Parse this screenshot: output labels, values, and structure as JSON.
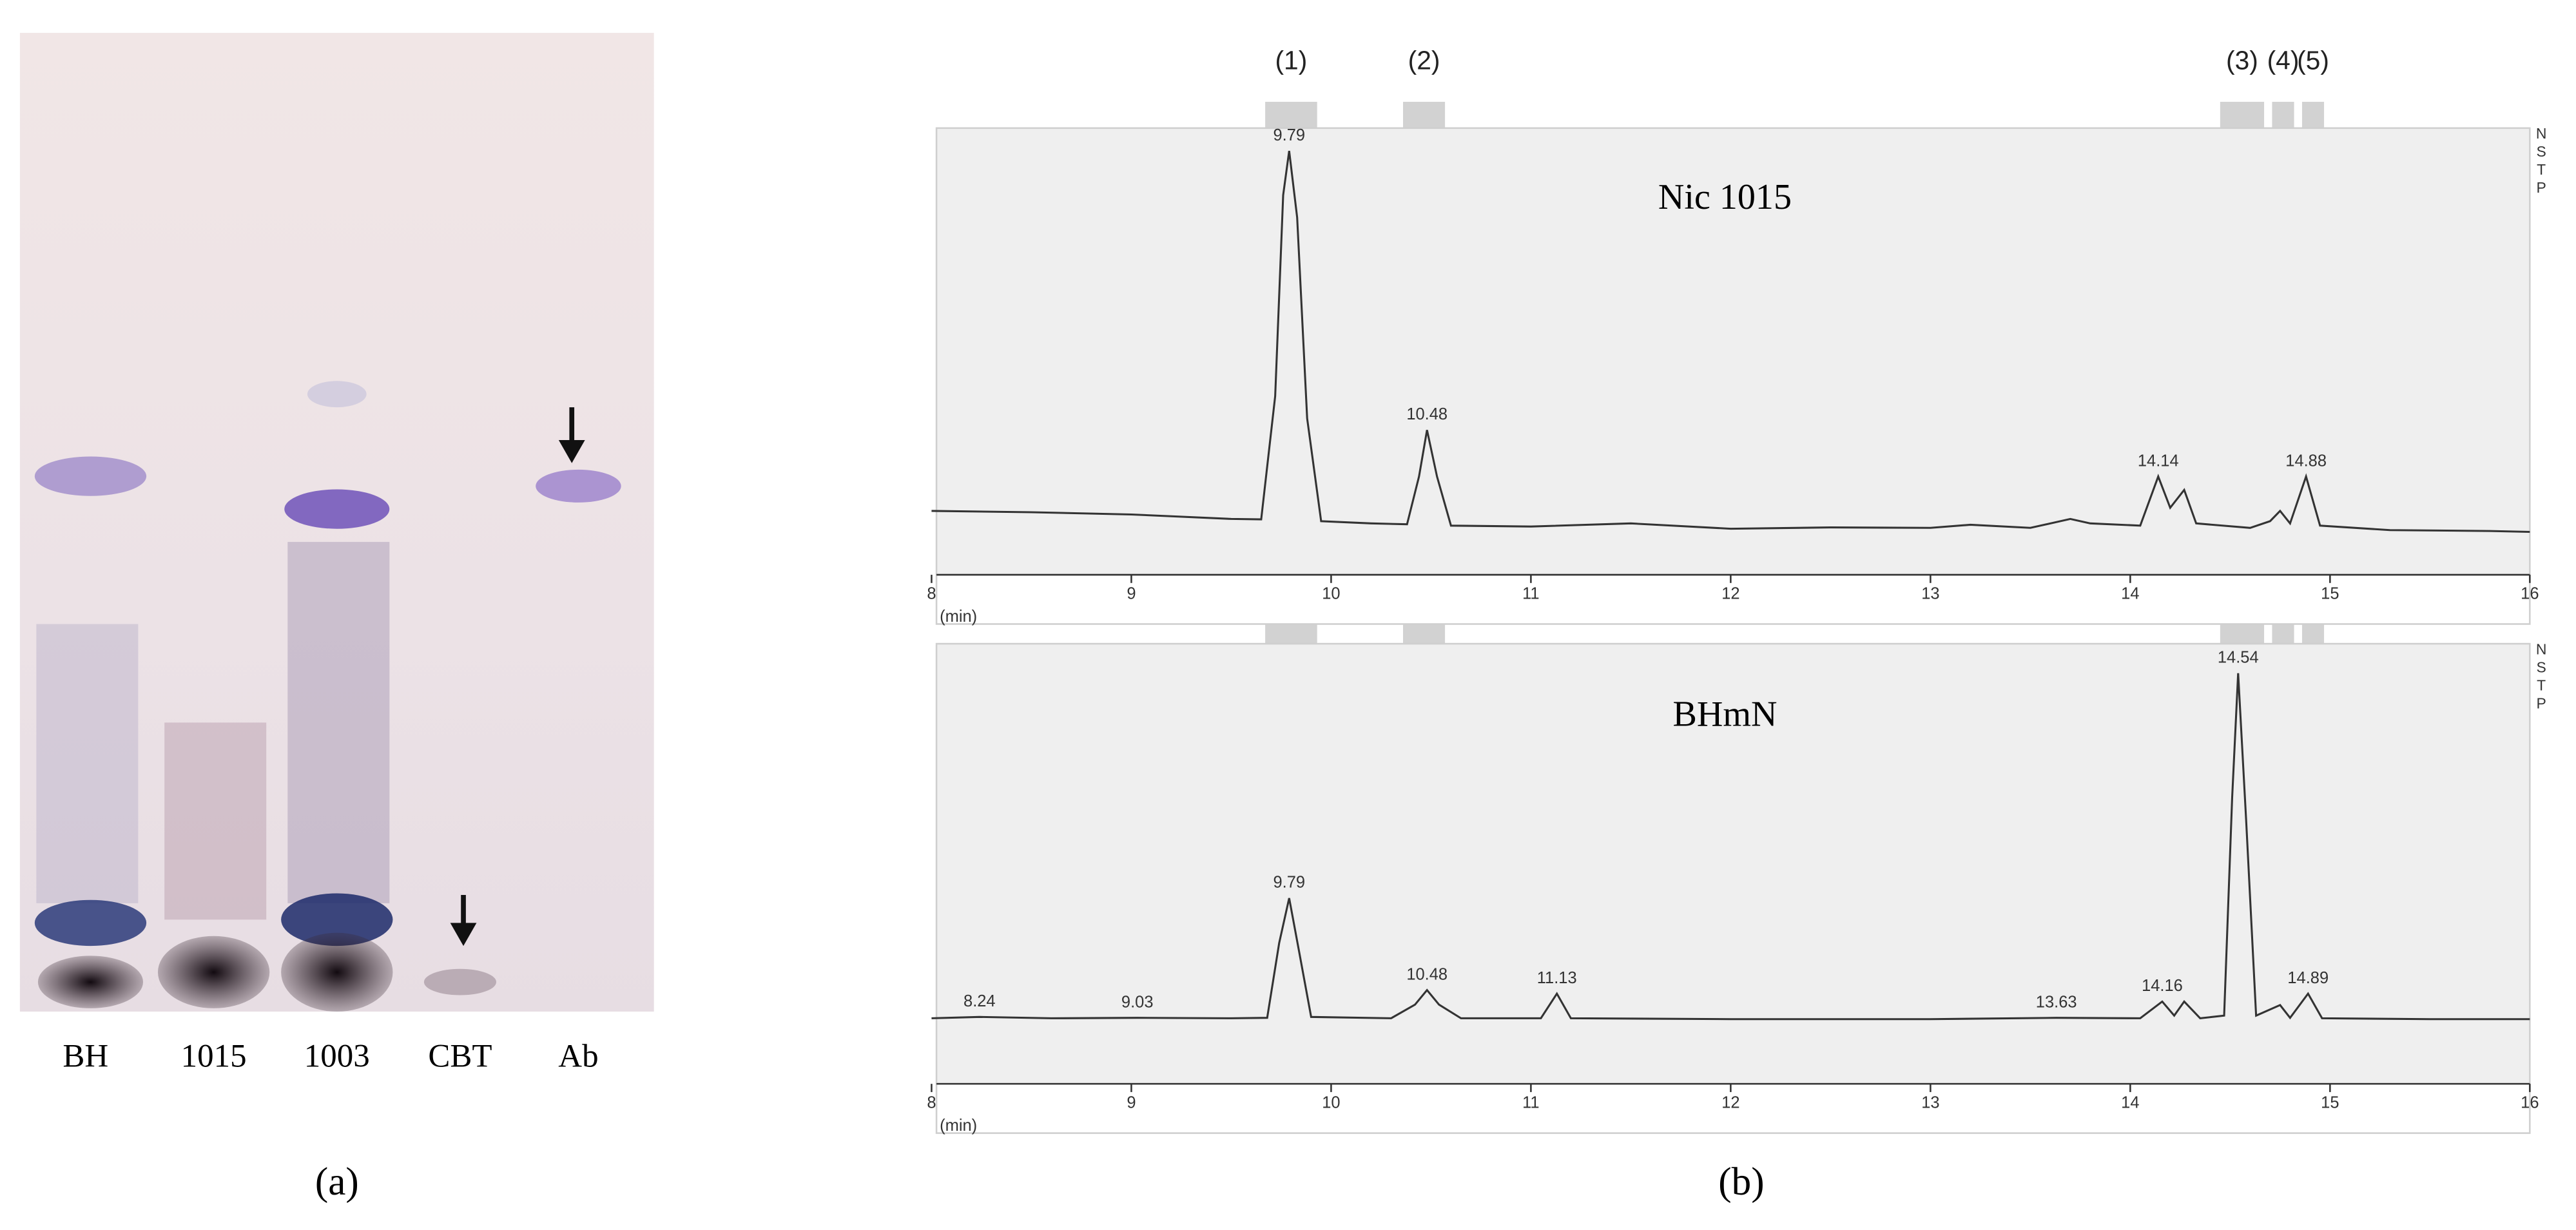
{
  "panel_a": {
    "caption": "(a)",
    "lanes": [
      "BH",
      "1015",
      "1003",
      "CBT",
      "Ab"
    ]
  },
  "panel_b": {
    "caption": "(b)",
    "regions": [
      {
        "label": "(1)",
        "xrange": [
          9.67,
          9.93
        ]
      },
      {
        "label": "(2)",
        "xrange": [
          10.36,
          10.57
        ]
      },
      {
        "label": "(3)",
        "xrange": [
          14.45,
          14.67
        ]
      },
      {
        "label": "(4)",
        "xrange": [
          14.71,
          14.82
        ]
      },
      {
        "label": "(5)",
        "xrange": [
          14.86,
          14.97
        ]
      }
    ]
  },
  "chart_data": [
    {
      "type": "line",
      "title": "Nic 1015",
      "xlabel": "(min)",
      "side_labels": [
        "N",
        "S",
        "T",
        "P"
      ],
      "color": "#333333",
      "xlim": [
        8,
        16
      ],
      "xticks": [
        8,
        9,
        10,
        11,
        12,
        13,
        14,
        15,
        16
      ],
      "ylim": [
        0,
        100
      ],
      "x": [
        8.0,
        8.5,
        9.0,
        9.5,
        9.65,
        9.72,
        9.76,
        9.79,
        9.83,
        9.88,
        9.95,
        10.2,
        10.38,
        10.44,
        10.48,
        10.53,
        10.6,
        11.0,
        11.5,
        12.0,
        12.5,
        13.0,
        13.2,
        13.5,
        13.7,
        13.8,
        14.05,
        14.14,
        14.2,
        14.27,
        14.33,
        14.6,
        14.7,
        14.75,
        14.8,
        14.88,
        14.95,
        15.3,
        15.8,
        16.0
      ],
      "values": [
        14.3,
        14.0,
        13.5,
        12.5,
        12.4,
        40,
        85,
        94.9,
        80,
        35,
        12,
        11.5,
        11.3,
        22,
        32.4,
        22,
        11,
        10.8,
        11.5,
        10.3,
        10.6,
        10.5,
        11.2,
        10.5,
        12.5,
        11.5,
        11,
        22,
        15,
        19,
        11.5,
        10.5,
        12,
        14.3,
        11.5,
        22,
        11,
        10,
        9.8,
        9.6
      ],
      "peaks": [
        9.79,
        10.48,
        14.14,
        14.88
      ]
    },
    {
      "type": "line",
      "title": "BHmN",
      "xlabel": "(min)",
      "side_labels": [
        "N",
        "S",
        "T",
        "P"
      ],
      "color": "#333333",
      "xlim": [
        8,
        16
      ],
      "xticks": [
        8,
        9,
        10,
        11,
        12,
        13,
        14,
        15,
        16
      ],
      "ylim": [
        0,
        100
      ],
      "x": [
        8.0,
        8.24,
        8.6,
        9.03,
        9.5,
        9.68,
        9.74,
        9.79,
        9.84,
        9.9,
        10.3,
        10.42,
        10.48,
        10.54,
        10.65,
        11.05,
        11.13,
        11.2,
        12.0,
        13.0,
        13.63,
        14.05,
        14.16,
        14.22,
        14.27,
        14.35,
        14.47,
        14.51,
        14.54,
        14.58,
        14.63,
        14.75,
        14.8,
        14.89,
        14.96,
        15.5,
        16.0
      ],
      "values": [
        14.9,
        15.2,
        14.9,
        15.0,
        14.9,
        15.0,
        32,
        42.2,
        30,
        15.2,
        14.9,
        18,
        21.3,
        18,
        14.9,
        14.9,
        20.5,
        14.9,
        14.7,
        14.7,
        15.0,
        14.9,
        18.7,
        15.5,
        18.7,
        14.9,
        15.5,
        65,
        93.3,
        60,
        15.5,
        17.9,
        15.0,
        20.5,
        14.9,
        14.7,
        14.7
      ],
      "peaks": [
        8.24,
        9.03,
        9.79,
        10.48,
        11.13,
        13.63,
        14.16,
        14.54,
        14.89
      ]
    }
  ]
}
